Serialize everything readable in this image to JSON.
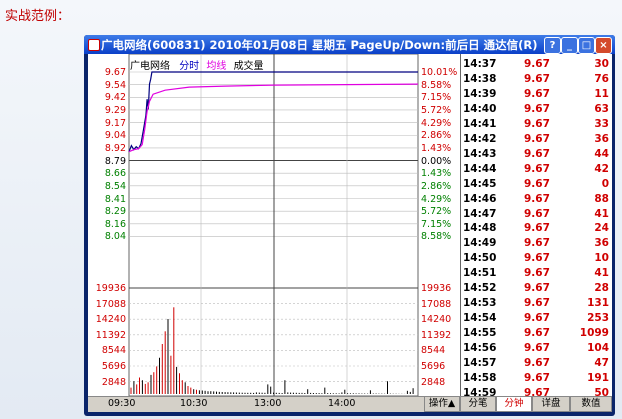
{
  "heading": "实战范例：",
  "window": {
    "title": "广电网络(600831)  2010年01月08日  星期五  PageUp/Down:前后日  通达信(R)",
    "buttons": [
      "?",
      "_",
      "□",
      "×"
    ]
  },
  "legend": {
    "name": "广电网络",
    "fenshi": "分时",
    "junxian": "均线",
    "chengjiao": "成交量"
  },
  "price_axis": {
    "left": [
      "9.67",
      "9.54",
      "9.42",
      "9.29",
      "9.17",
      "9.04",
      "8.92",
      "8.79",
      "8.66",
      "8.54",
      "8.41",
      "8.29",
      "8.16",
      "8.04"
    ],
    "right": [
      "10.01%",
      "8.58%",
      "7.15%",
      "5.72%",
      "4.29%",
      "2.86%",
      "1.43%",
      "0.00%",
      "1.43%",
      "2.86%",
      "4.29%",
      "5.72%",
      "7.15%",
      "8.58%"
    ]
  },
  "volume_axis": {
    "left": [
      "19936",
      "17088",
      "14240",
      "11392",
      "8544",
      "5696",
      "2848"
    ],
    "right": [
      "19936",
      "17088",
      "14240",
      "11392",
      "8544",
      "5696",
      "2848"
    ]
  },
  "time_axis": [
    "09:30",
    "10:30",
    "13:00",
    "14:00"
  ],
  "bottom_buttons": {
    "operate": "操作▲",
    "tab_bibi": "分笔",
    "tab_fenzhong": "分钟",
    "tab_xiangpan": "详盘",
    "tab_shuzhi": "数值"
  },
  "ticks": [
    {
      "time": "14:37",
      "price": "9.67",
      "vol": "30"
    },
    {
      "time": "14:38",
      "price": "9.67",
      "vol": "76"
    },
    {
      "time": "14:39",
      "price": "9.67",
      "vol": "11"
    },
    {
      "time": "14:40",
      "price": "9.67",
      "vol": "63"
    },
    {
      "time": "14:41",
      "price": "9.67",
      "vol": "33"
    },
    {
      "time": "14:42",
      "price": "9.67",
      "vol": "36"
    },
    {
      "time": "14:43",
      "price": "9.67",
      "vol": "44"
    },
    {
      "time": "14:44",
      "price": "9.67",
      "vol": "42"
    },
    {
      "time": "14:45",
      "price": "9.67",
      "vol": "0"
    },
    {
      "time": "14:46",
      "price": "9.67",
      "vol": "88"
    },
    {
      "time": "14:47",
      "price": "9.67",
      "vol": "41"
    },
    {
      "time": "14:48",
      "price": "9.67",
      "vol": "24"
    },
    {
      "time": "14:49",
      "price": "9.67",
      "vol": "36"
    },
    {
      "time": "14:50",
      "price": "9.67",
      "vol": "10"
    },
    {
      "time": "14:51",
      "price": "9.67",
      "vol": "41"
    },
    {
      "time": "14:52",
      "price": "9.67",
      "vol": "28"
    },
    {
      "time": "14:53",
      "price": "9.67",
      "vol": "131"
    },
    {
      "time": "14:54",
      "price": "9.67",
      "vol": "253"
    },
    {
      "time": "14:55",
      "price": "9.67",
      "vol": "1099"
    },
    {
      "time": "14:56",
      "price": "9.67",
      "vol": "104"
    },
    {
      "time": "14:57",
      "price": "9.67",
      "vol": "47"
    },
    {
      "time": "14:58",
      "price": "9.67",
      "vol": "191"
    },
    {
      "time": "14:59",
      "price": "9.67",
      "vol": "50"
    }
  ],
  "colors": {
    "up": "#d00000",
    "down": "#008000",
    "price_line": "#000080",
    "avg_line": "#e000e0",
    "grid": "#aaaaaa"
  }
}
